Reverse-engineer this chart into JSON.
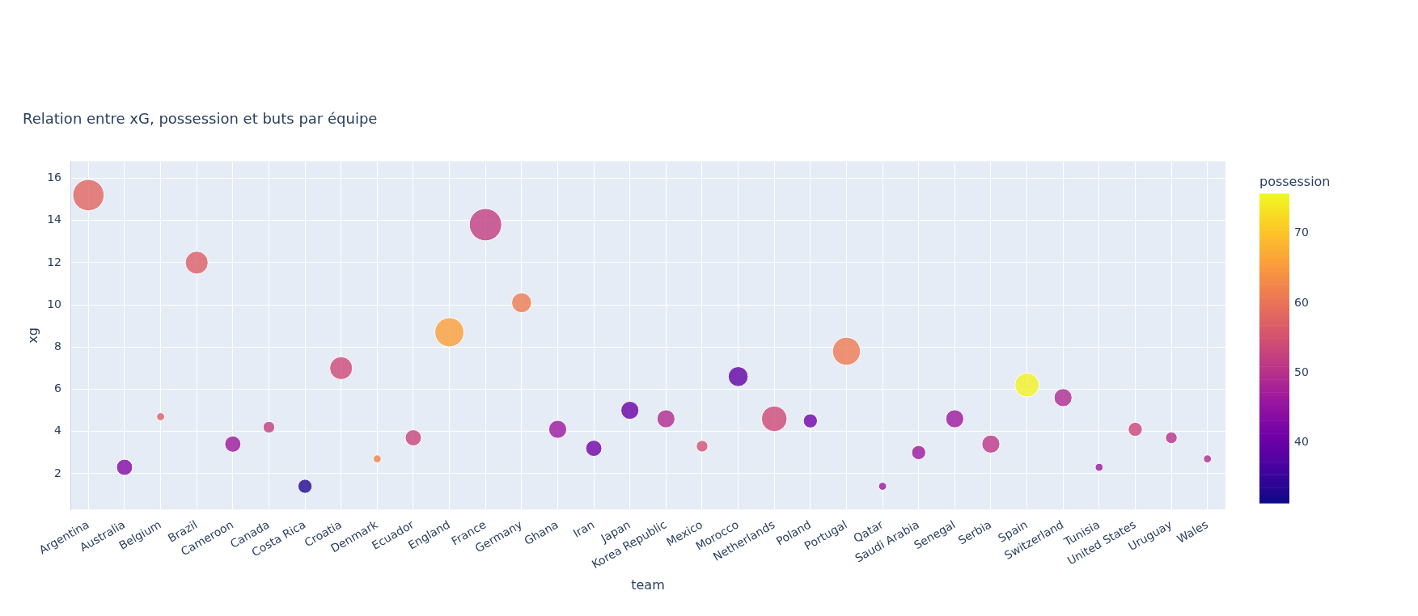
{
  "chart_data": {
    "type": "bubble",
    "title": "Relation entre xG, possession et buts par équipe",
    "xlabel": "team",
    "ylabel": "xg",
    "clabel": "possession",
    "categories": [
      "Argentina",
      "Australia",
      "Belgium",
      "Brazil",
      "Cameroon",
      "Canada",
      "Costa Rica",
      "Croatia",
      "Denmark",
      "Ecuador",
      "England",
      "France",
      "Germany",
      "Ghana",
      "Iran",
      "Japan",
      "Korea Republic",
      "Mexico",
      "Morocco",
      "Netherlands",
      "Poland",
      "Portugal",
      "Qatar",
      "Saudi Arabia",
      "Senegal",
      "Serbia",
      "Spain",
      "Switzerland",
      "Tunisia",
      "United States",
      "Uruguay",
      "Wales"
    ],
    "values": [
      15.2,
      2.3,
      4.7,
      12.0,
      3.4,
      4.2,
      1.4,
      7.0,
      2.7,
      3.7,
      8.7,
      13.8,
      10.1,
      4.1,
      3.2,
      5.0,
      4.6,
      3.3,
      6.6,
      4.6,
      4.5,
      7.8,
      1.4,
      3.0,
      4.6,
      3.4,
      6.2,
      5.6,
      2.3,
      4.1,
      3.7,
      2.7
    ],
    "sizes": [
      0.94,
      0.25,
      0.06,
      0.5,
      0.25,
      0.13,
      0.19,
      0.5,
      0.06,
      0.25,
      0.81,
      1,
      0.38,
      0.31,
      0.25,
      0.31,
      0.31,
      0.13,
      0.38,
      0.63,
      0.19,
      0.75,
      0.06,
      0.19,
      0.31,
      0.31,
      0.56,
      0.31,
      0.06,
      0.19,
      0.13,
      0.06
    ],
    "cvalues": [
      58,
      43,
      57,
      57,
      46,
      52,
      33,
      54,
      62,
      53,
      66,
      52,
      61,
      46,
      41,
      40,
      49,
      55,
      39,
      54,
      41,
      61,
      46,
      46,
      46,
      51,
      75,
      49,
      46,
      53,
      50,
      49
    ],
    "clim": [
      31.3,
      75.7
    ],
    "cticks": [
      40,
      50,
      60,
      70
    ],
    "ylim": [
      0.3,
      16.8
    ],
    "yticks": [
      2,
      4,
      6,
      8,
      10,
      12,
      14,
      16
    ],
    "grid": true
  }
}
